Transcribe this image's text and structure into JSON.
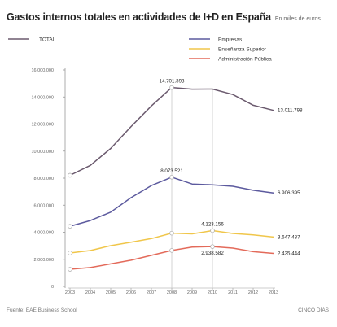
{
  "header": {
    "title": "Gastos internos totales en actividades de I+D en España",
    "subtitle": "En miles de euros"
  },
  "footer": {
    "source": "Fuente: EAE Business School",
    "brand": "CINCO DÍAS"
  },
  "colors": {
    "total": "#6b5a6e",
    "empresas": "#5c5a9e",
    "ensenanza": "#f0c64a",
    "administracion": "#e36a5a",
    "axis": "#999999",
    "grid_label": "#666666"
  },
  "chart_data": {
    "type": "line",
    "x": [
      "2003",
      "2004",
      "2005",
      "2006",
      "2007",
      "2008",
      "2009",
      "2010",
      "2011",
      "2012",
      "2013"
    ],
    "ylim": [
      0,
      16000000
    ],
    "yticks": [
      0,
      2000000,
      4000000,
      6000000,
      8000000,
      10000000,
      12000000,
      14000000,
      16000000
    ],
    "ytick_labels": [
      "0",
      "2.000.000",
      "4.000.000",
      "6.000.000",
      "8.000.000",
      "10.000.000",
      "12.000.000",
      "14.000.000",
      "16.000.000"
    ],
    "legend_position": "top",
    "series": [
      {
        "key": "total",
        "name": "TOTAL",
        "values": [
          8213036,
          8945761,
          10196871,
          11815218,
          13342371,
          14701393,
          14581676,
          14588455,
          14184295,
          13391607,
          13011798
        ]
      },
      {
        "key": "empresas",
        "name": "Empresas",
        "values": [
          4443040,
          4864834,
          5485089,
          6557529,
          7453902,
          8073521,
          7567976,
          7506436,
          7396400,
          7104584,
          6906395
        ]
      },
      {
        "key": "ensenanza",
        "name": "Enseñanza Superior",
        "values": [
          2468934,
          2648580,
          3008315,
          3262087,
          3532839,
          3932040,
          3876864,
          4123156,
          3910720,
          3805624,
          3647487
        ]
      },
      {
        "key": "administracion",
        "name": "Administración Pública",
        "values": [
          1262170,
          1388400,
          1658850,
          1930090,
          2291062,
          2654281,
          2906001,
          2938582,
          2828168,
          2560412,
          2435444
        ]
      }
    ],
    "annotations": [
      {
        "text": "14.701.393",
        "series": "total",
        "index": 5,
        "placement": "above"
      },
      {
        "text": "8.073.521",
        "series": "empresas",
        "index": 5,
        "placement": "above"
      },
      {
        "text": "4.123.156",
        "series": "ensenanza",
        "index": 7,
        "placement": "above"
      },
      {
        "text": "2.938.582",
        "series": "administracion",
        "index": 7,
        "placement": "below"
      },
      {
        "text": "13.011.798",
        "series": "total",
        "index": 10,
        "placement": "right"
      },
      {
        "text": "6.906.395",
        "series": "empresas",
        "index": 10,
        "placement": "right"
      },
      {
        "text": "3.647.487",
        "series": "ensenanza",
        "index": 10,
        "placement": "right"
      },
      {
        "text": "2.435.444",
        "series": "administracion",
        "index": 10,
        "placement": "right"
      }
    ],
    "marker_years": [
      "2003",
      "2008",
      "2010"
    ]
  }
}
